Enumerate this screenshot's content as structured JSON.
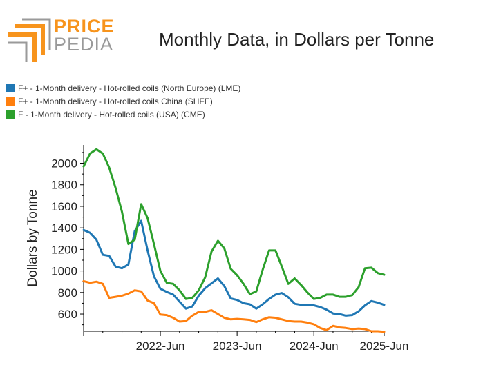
{
  "logo": {
    "word1": "PRICE",
    "word2": "PEDIA",
    "colors": {
      "accent": "#f7941d",
      "grey": "#9a9a9a"
    }
  },
  "chart_data": {
    "type": "line",
    "title": "Monthly Data, in Dollars per Tonne",
    "xlabel": "",
    "ylabel": "Dollars by Tonne",
    "ylim": [
      440,
      2170
    ],
    "yticks": [
      600,
      800,
      1000,
      1200,
      1400,
      1600,
      1800,
      2000
    ],
    "xticks": [
      "2022-Jun",
      "2023-Jun",
      "2024-Jun",
      "2025-Jun"
    ],
    "x_start": "2021-Jun",
    "x_end": "2025-Jun",
    "legend_position": "top-left",
    "series": [
      {
        "name": "F+ - 1-Month delivery - Hot-rolled coils (North Europe) (LME)",
        "color": "#1f77b4",
        "values": [
          1380,
          1355,
          1290,
          1150,
          1140,
          1040,
          1025,
          1060,
          1370,
          1465,
          1190,
          950,
          835,
          805,
          780,
          715,
          650,
          670,
          770,
          840,
          885,
          930,
          860,
          745,
          730,
          700,
          690,
          650,
          690,
          740,
          780,
          795,
          755,
          695,
          685,
          685,
          680,
          665,
          640,
          605,
          600,
          585,
          590,
          625,
          680,
          720,
          705,
          685
        ]
      },
      {
        "name": "F+ - 1-Month delivery - Hot-rolled coils China (SHFE)",
        "color": "#ff7f0e",
        "values": [
          905,
          890,
          900,
          880,
          750,
          760,
          770,
          790,
          820,
          810,
          725,
          700,
          595,
          590,
          565,
          530,
          535,
          585,
          620,
          620,
          635,
          600,
          565,
          550,
          555,
          550,
          545,
          525,
          550,
          570,
          565,
          550,
          535,
          530,
          530,
          520,
          505,
          470,
          450,
          490,
          475,
          470,
          460,
          465,
          460,
          440,
          440,
          435
        ]
      },
      {
        "name": "F - 1-Month delivery - Hot-rolled coils (USA) (CME)",
        "color": "#2ca02c",
        "values": [
          1970,
          2090,
          2130,
          2090,
          1960,
          1770,
          1550,
          1250,
          1290,
          1620,
          1490,
          1250,
          1000,
          890,
          880,
          820,
          740,
          750,
          820,
          940,
          1180,
          1280,
          1210,
          1020,
          960,
          880,
          785,
          810,
          1010,
          1190,
          1190,
          1040,
          880,
          930,
          870,
          800,
          740,
          750,
          780,
          780,
          760,
          760,
          775,
          850,
          1025,
          1030,
          980,
          965
        ]
      }
    ]
  }
}
